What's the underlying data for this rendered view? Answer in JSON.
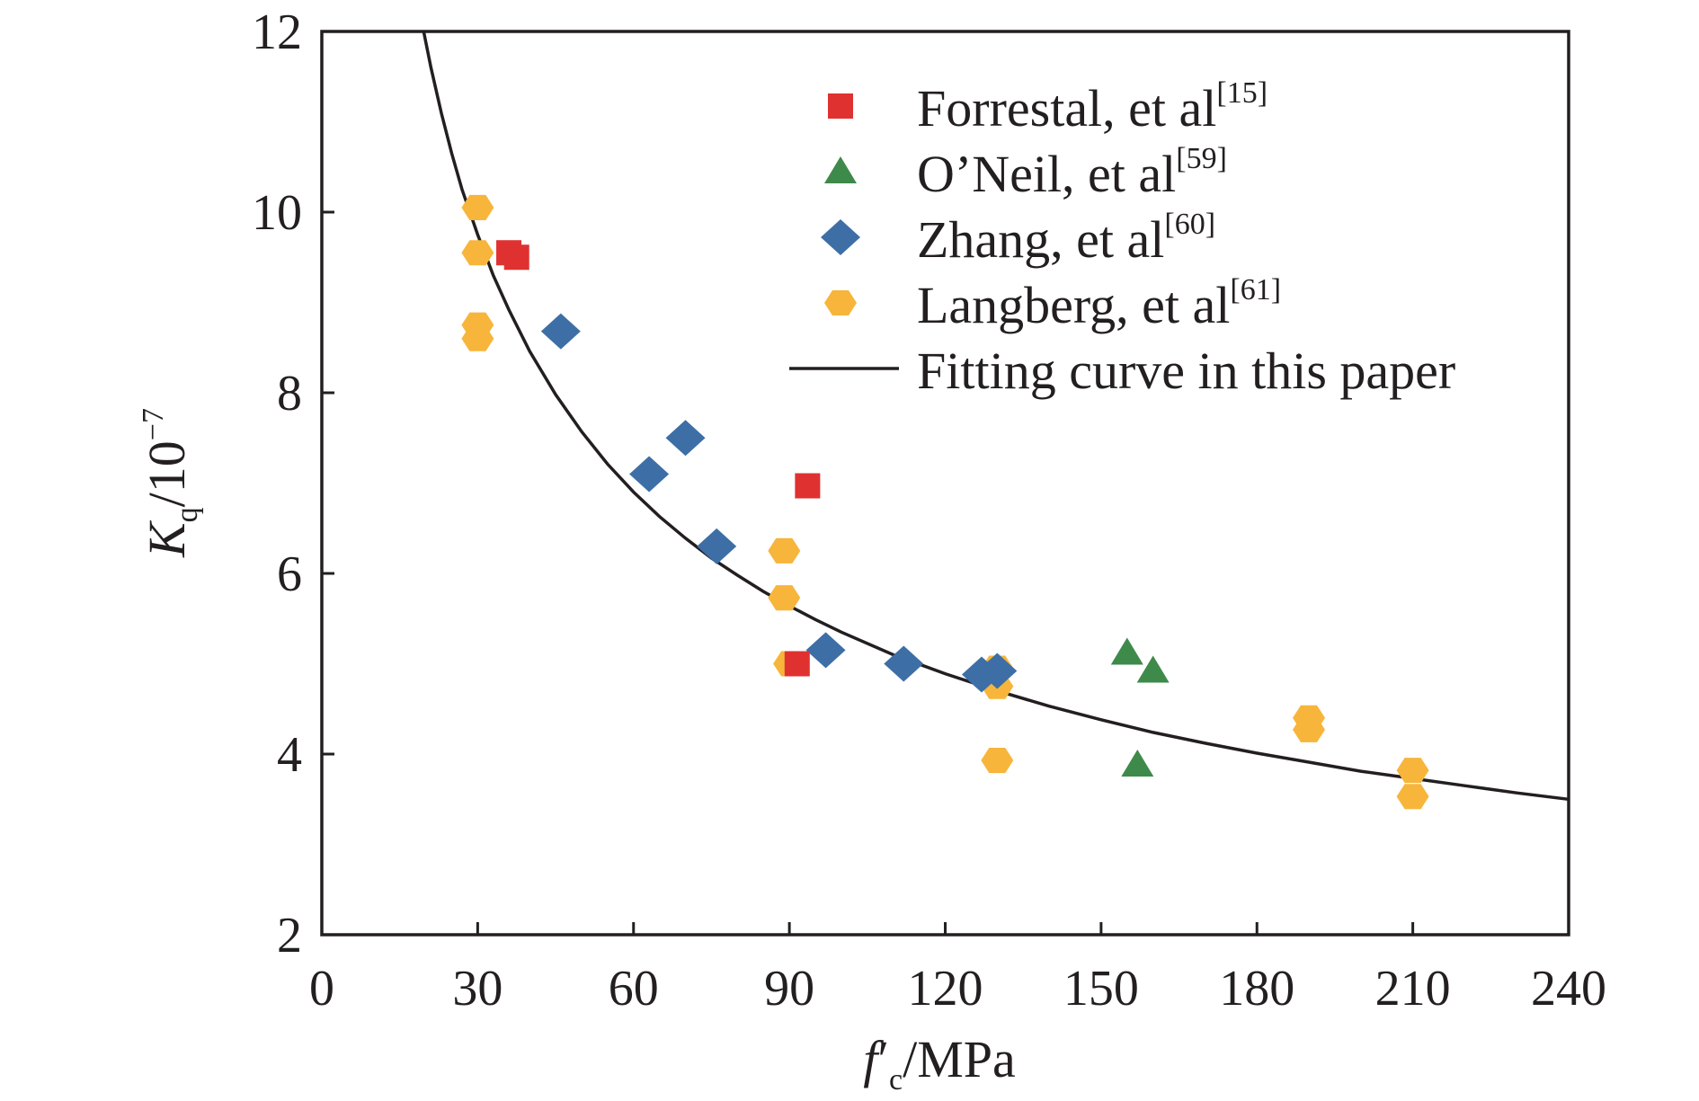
{
  "chart_data": {
    "type": "scatter",
    "title": "",
    "xlabel": {
      "main": "f",
      "prime": "′",
      "sub": "c",
      "unit": "/MPa"
    },
    "ylabel": {
      "main": "K",
      "sub": "q",
      "unit": "/10",
      "exp": "−7"
    },
    "xlim": [
      0,
      240
    ],
    "ylim": [
      2,
      12
    ],
    "xticks": [
      0,
      30,
      60,
      90,
      120,
      150,
      180,
      210,
      240
    ],
    "yticks": [
      2,
      4,
      6,
      8,
      10,
      12
    ],
    "grid": false,
    "legend_position": "top-right",
    "series": [
      {
        "name": "Forrestal, et al",
        "ref": "[15]",
        "marker": "square",
        "color": "#e03131",
        "points": [
          [
            36,
            9.55
          ],
          [
            37.5,
            9.5
          ],
          [
            93.5,
            6.97
          ],
          [
            91.5,
            5.0
          ]
        ]
      },
      {
        "name": "O’Neil, et al",
        "ref": "[59]",
        "marker": "triangle",
        "color": "#3e8a4b",
        "points": [
          [
            155,
            5.12
          ],
          [
            160,
            4.92
          ],
          [
            157,
            3.88
          ]
        ]
      },
      {
        "name": "Zhang, et al",
        "ref": "[60]",
        "marker": "diamond",
        "color": "#3d6fa6",
        "points": [
          [
            46,
            8.68
          ],
          [
            63,
            7.1
          ],
          [
            70,
            7.5
          ],
          [
            76,
            6.3
          ],
          [
            97,
            5.15
          ],
          [
            112,
            5.0
          ],
          [
            127,
            4.88
          ],
          [
            130,
            4.92
          ]
        ]
      },
      {
        "name": "Langberg, et al",
        "ref": "[61]",
        "marker": "hexagon",
        "color": "#f7b53c",
        "points": [
          [
            30,
            10.05
          ],
          [
            30,
            9.55
          ],
          [
            30,
            8.75
          ],
          [
            30,
            8.6
          ],
          [
            89,
            6.25
          ],
          [
            89,
            5.73
          ],
          [
            90,
            5.0
          ],
          [
            130,
            4.95
          ],
          [
            130,
            4.75
          ],
          [
            130,
            3.93
          ],
          [
            190,
            4.4
          ],
          [
            190,
            4.27
          ],
          [
            210,
            3.82
          ],
          [
            210,
            3.53
          ]
        ]
      }
    ],
    "fit_curve": {
      "name": "Fitting curve in this paper",
      "color": "#231f20",
      "points": [
        [
          19.6,
          12.0
        ],
        [
          21,
          11.6
        ],
        [
          23,
          11.1
        ],
        [
          25,
          10.65
        ],
        [
          27,
          10.25
        ],
        [
          30,
          9.75
        ],
        [
          33,
          9.3
        ],
        [
          36,
          8.92
        ],
        [
          40,
          8.46
        ],
        [
          45,
          7.98
        ],
        [
          50,
          7.57
        ],
        [
          55,
          7.21
        ],
        [
          60,
          6.9
        ],
        [
          65,
          6.63
        ],
        [
          70,
          6.39
        ],
        [
          75,
          6.17
        ],
        [
          80,
          5.98
        ],
        [
          85,
          5.8
        ],
        [
          90,
          5.64
        ],
        [
          95,
          5.49
        ],
        [
          100,
          5.35
        ],
        [
          110,
          5.1
        ],
        [
          120,
          4.89
        ],
        [
          130,
          4.7
        ],
        [
          140,
          4.53
        ],
        [
          150,
          4.38
        ],
        [
          160,
          4.24
        ],
        [
          170,
          4.12
        ],
        [
          180,
          4.01
        ],
        [
          190,
          3.91
        ],
        [
          200,
          3.81
        ],
        [
          210,
          3.73
        ],
        [
          220,
          3.65
        ],
        [
          230,
          3.57
        ],
        [
          240,
          3.5
        ]
      ]
    }
  }
}
